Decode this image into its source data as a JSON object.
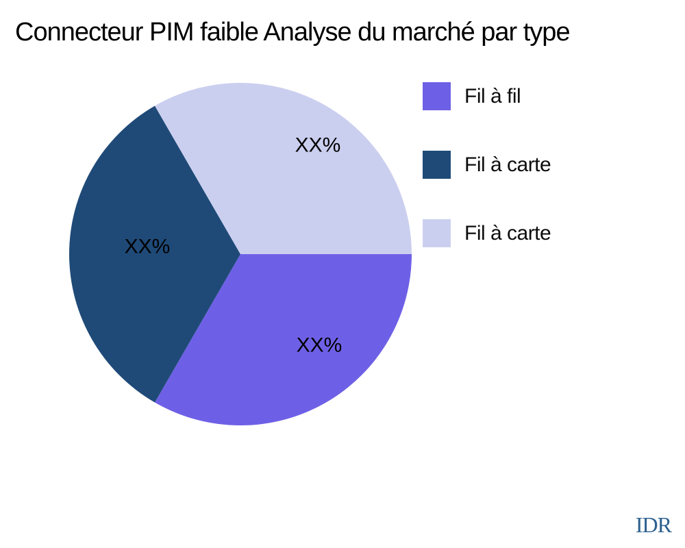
{
  "title": "Connecteur PIM faible Analyse du marché par type",
  "watermark": {
    "text": "IDR",
    "color": "#2d608f"
  },
  "chart_data": {
    "type": "pie",
    "title": "Connecteur PIM faible Analyse du marché par type",
    "background": "#ffffff",
    "start_angle_deg": 0,
    "direction": "clockwise",
    "legend_position": "right",
    "data_label_color": "#000000",
    "slices": [
      {
        "label": "Fil à fil",
        "value": 33.33,
        "percent_label": "XX%",
        "color": "#6e60e6"
      },
      {
        "label": "Fil à carte",
        "value": 33.33,
        "percent_label": "XX%",
        "color": "#1f4a78"
      },
      {
        "label": "Fil à carte",
        "value": 33.33,
        "percent_label": "XX%",
        "color": "#cbcfef"
      }
    ]
  }
}
